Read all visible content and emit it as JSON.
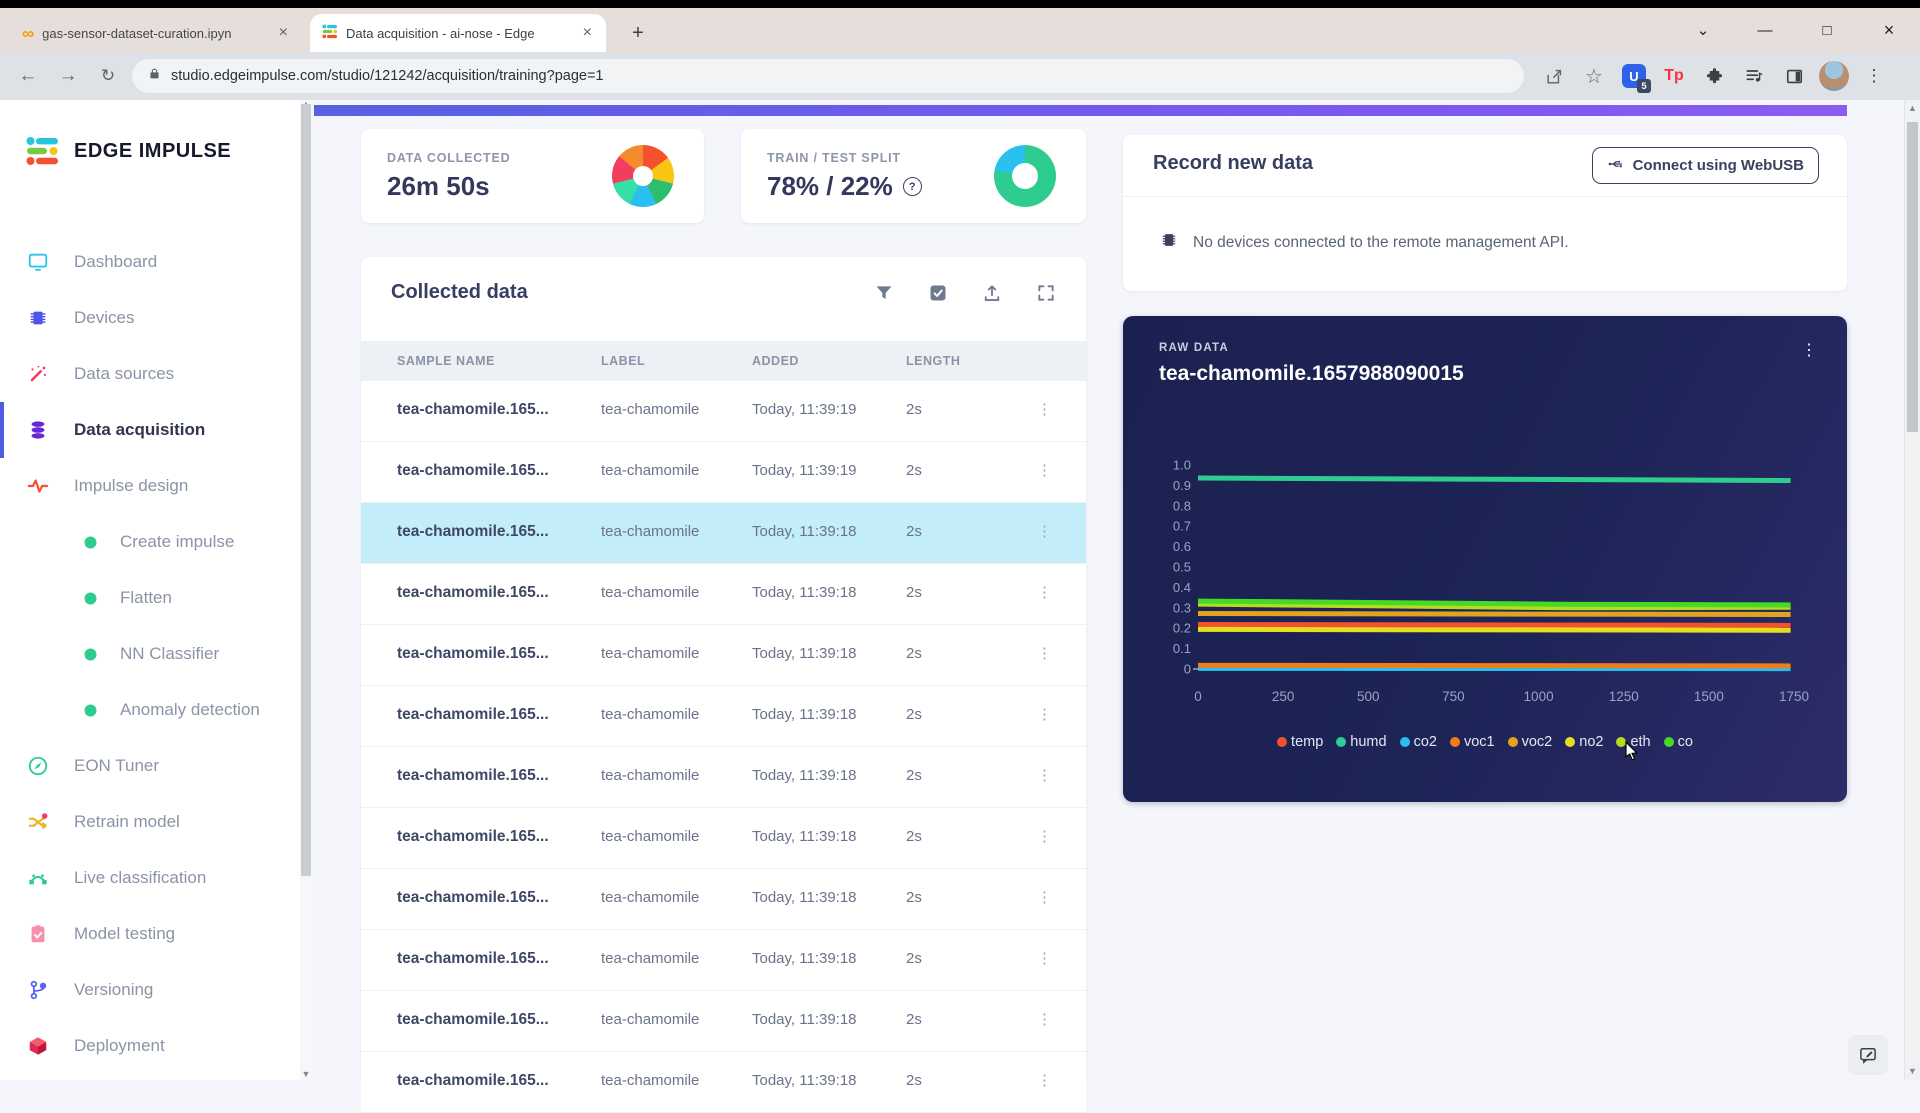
{
  "browser": {
    "tabs": [
      {
        "title": "gas-sensor-dataset-curation.ipyn",
        "favicon": "colab-icon",
        "active": false
      },
      {
        "title": "Data acquisition - ai-nose - Edge",
        "favicon": "edge-impulse-icon",
        "active": true
      }
    ],
    "url": "studio.edgeimpulse.com/studio/121242/acquisition/training?page=1",
    "extension_badge": "5",
    "tp_label": "Tp"
  },
  "sidebar": {
    "logo_text": "EDGE IMPULSE",
    "items": [
      {
        "label": "Dashboard",
        "icon": "dashboard",
        "sub": false,
        "active": false
      },
      {
        "label": "Devices",
        "icon": "devices",
        "sub": false,
        "active": false
      },
      {
        "label": "Data sources",
        "icon": "data-sources",
        "sub": false,
        "active": false
      },
      {
        "label": "Data acquisition",
        "icon": "data-acquisition",
        "sub": false,
        "active": true
      },
      {
        "label": "Impulse design",
        "icon": "impulse-design",
        "sub": false,
        "active": false
      },
      {
        "label": "Create impulse",
        "icon": "green-dot",
        "sub": true,
        "active": false
      },
      {
        "label": "Flatten",
        "icon": "green-dot",
        "sub": true,
        "active": false
      },
      {
        "label": "NN Classifier",
        "icon": "green-dot",
        "sub": true,
        "active": false
      },
      {
        "label": "Anomaly detection",
        "icon": "green-dot",
        "sub": true,
        "active": false
      },
      {
        "label": "EON Tuner",
        "icon": "eon-tuner",
        "sub": false,
        "active": false
      },
      {
        "label": "Retrain model",
        "icon": "retrain",
        "sub": false,
        "active": false
      },
      {
        "label": "Live classification",
        "icon": "live-classification",
        "sub": false,
        "active": false
      },
      {
        "label": "Model testing",
        "icon": "model-testing",
        "sub": false,
        "active": false
      },
      {
        "label": "Versioning",
        "icon": "versioning",
        "sub": false,
        "active": false
      },
      {
        "label": "Deployment",
        "icon": "deployment",
        "sub": false,
        "active": false
      }
    ]
  },
  "stats": {
    "data_collected": {
      "label": "DATA COLLECTED",
      "value": "26m 50s",
      "pie_segments": [
        {
          "color": "#f4522e",
          "pct": 15
        },
        {
          "color": "#f9c513",
          "pct": 14
        },
        {
          "color": "#2dbd6e",
          "pct": 14
        },
        {
          "color": "#29c0f0",
          "pct": 14
        },
        {
          "color": "#35e0a8",
          "pct": 14
        },
        {
          "color": "#f23d5e",
          "pct": 15
        },
        {
          "color": "#f58b2c",
          "pct": 14
        }
      ]
    },
    "train_test": {
      "label": "TRAIN / TEST SPLIT",
      "value": "78% / 22%",
      "train_pct": 78,
      "test_pct": 22,
      "train_color": "#2ecc8e",
      "test_color": "#29c0f0"
    }
  },
  "collected": {
    "title": "Collected data",
    "columns": [
      "SAMPLE NAME",
      "LABEL",
      "ADDED",
      "LENGTH"
    ],
    "rows": [
      {
        "name": "tea-chamomile.165...",
        "label": "tea-chamomile",
        "added": "Today, 11:39:19",
        "length": "2s",
        "selected": false
      },
      {
        "name": "tea-chamomile.165...",
        "label": "tea-chamomile",
        "added": "Today, 11:39:19",
        "length": "2s",
        "selected": false
      },
      {
        "name": "tea-chamomile.165...",
        "label": "tea-chamomile",
        "added": "Today, 11:39:18",
        "length": "2s",
        "selected": true
      },
      {
        "name": "tea-chamomile.165...",
        "label": "tea-chamomile",
        "added": "Today, 11:39:18",
        "length": "2s",
        "selected": false
      },
      {
        "name": "tea-chamomile.165...",
        "label": "tea-chamomile",
        "added": "Today, 11:39:18",
        "length": "2s",
        "selected": false
      },
      {
        "name": "tea-chamomile.165...",
        "label": "tea-chamomile",
        "added": "Today, 11:39:18",
        "length": "2s",
        "selected": false
      },
      {
        "name": "tea-chamomile.165...",
        "label": "tea-chamomile",
        "added": "Today, 11:39:18",
        "length": "2s",
        "selected": false
      },
      {
        "name": "tea-chamomile.165...",
        "label": "tea-chamomile",
        "added": "Today, 11:39:18",
        "length": "2s",
        "selected": false
      },
      {
        "name": "tea-chamomile.165...",
        "label": "tea-chamomile",
        "added": "Today, 11:39:18",
        "length": "2s",
        "selected": false
      },
      {
        "name": "tea-chamomile.165...",
        "label": "tea-chamomile",
        "added": "Today, 11:39:18",
        "length": "2s",
        "selected": false
      },
      {
        "name": "tea-chamomile.165...",
        "label": "tea-chamomile",
        "added": "Today, 11:39:18",
        "length": "2s",
        "selected": false
      },
      {
        "name": "tea-chamomile.165...",
        "label": "tea-chamomile",
        "added": "Today, 11:39:18",
        "length": "2s",
        "selected": false
      }
    ]
  },
  "record": {
    "title": "Record new data",
    "connect_button": "Connect using WebUSB",
    "no_devices": "No devices connected to the remote management API."
  },
  "chart_data": {
    "type": "line",
    "panel_label": "RAW DATA",
    "title": "tea-chamomile.1657988090015",
    "xlabel": "",
    "ylabel": "",
    "xlim": [
      0,
      1750
    ],
    "ylim": [
      0,
      1.0
    ],
    "x_ticks": [
      0,
      250,
      500,
      750,
      1000,
      1250,
      1500,
      1750
    ],
    "y_ticks": [
      "1.0",
      "0.9",
      "0.8",
      "0.7",
      "0.6",
      "0.5",
      "0.4",
      "0.3",
      "0.2",
      "0.1",
      "0"
    ],
    "grid": false,
    "legend_position": "bottom",
    "series": [
      {
        "name": "temp",
        "color": "#f4522e",
        "values": [
          [
            0,
            0.218
          ],
          [
            1740,
            0.214
          ]
        ]
      },
      {
        "name": "humd",
        "color": "#2ecc8e",
        "values": [
          [
            0,
            0.936
          ],
          [
            1740,
            0.924
          ]
        ]
      },
      {
        "name": "co2",
        "color": "#29c0f0",
        "values": [
          [
            0,
            0.003
          ],
          [
            1740,
            0.002
          ]
        ]
      },
      {
        "name": "voc1",
        "color": "#ef7d1a",
        "values": [
          [
            0,
            0.018
          ],
          [
            1740,
            0.015
          ]
        ]
      },
      {
        "name": "voc2",
        "color": "#e2a31f",
        "values": [
          [
            0,
            0.272
          ],
          [
            1740,
            0.267
          ]
        ]
      },
      {
        "name": "no2",
        "color": "#e6df20",
        "values": [
          [
            0,
            0.194
          ],
          [
            1740,
            0.19
          ]
        ]
      },
      {
        "name": "eth",
        "color": "#b5dc1f",
        "values": [
          [
            0,
            0.318
          ],
          [
            500,
            0.31
          ],
          [
            1100,
            0.3
          ],
          [
            1740,
            0.303
          ]
        ]
      },
      {
        "name": "co",
        "color": "#46d926",
        "values": [
          [
            0,
            0.333
          ],
          [
            500,
            0.326
          ],
          [
            1100,
            0.317
          ],
          [
            1740,
            0.314
          ]
        ]
      }
    ]
  }
}
